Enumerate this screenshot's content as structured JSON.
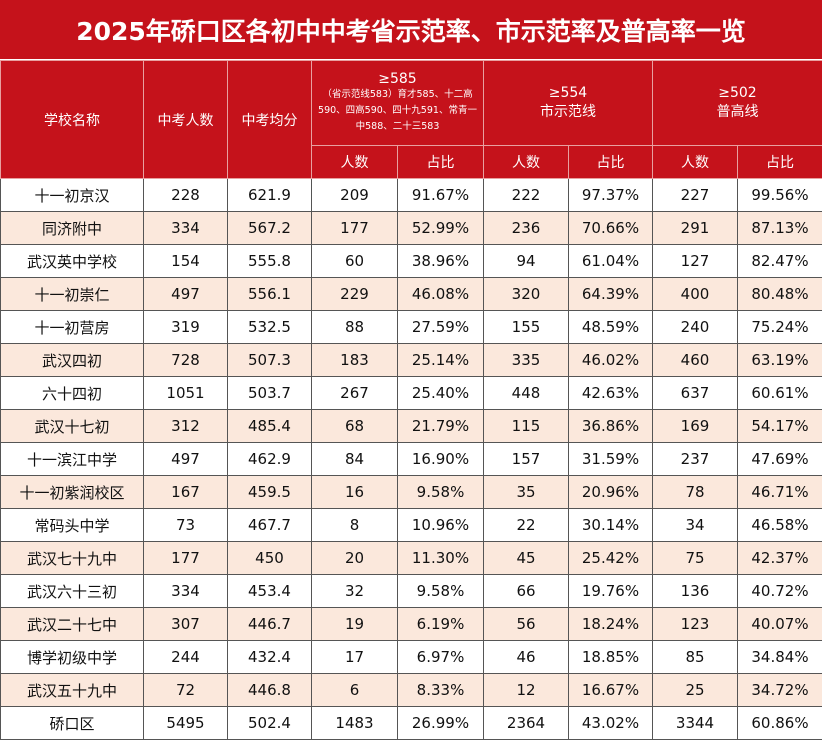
{
  "title": "2025年硚口区各初中中考省示范率、市示范率及普高率一览",
  "header": {
    "columns": [
      "学校名称",
      "中考人数",
      "中考均分"
    ],
    "groups": [
      {
        "threshold": "≥585",
        "note": "（省示范线583）育才585、十二高590、四高590、四十九591、常青一中588、二十三583",
        "sub": [
          "人数",
          "占比"
        ]
      },
      {
        "threshold": "≥554",
        "label": "市示范线",
        "sub": [
          "人数",
          "占比"
        ]
      },
      {
        "threshold": "≥502",
        "label": "普高线",
        "sub": [
          "人数",
          "占比"
        ]
      }
    ]
  },
  "table": {
    "rows": [
      [
        "十一初京汉",
        "228",
        "621.9",
        "209",
        "91.67%",
        "222",
        "97.37%",
        "227",
        "99.56%"
      ],
      [
        "同济附中",
        "334",
        "567.2",
        "177",
        "52.99%",
        "236",
        "70.66%",
        "291",
        "87.13%"
      ],
      [
        "武汉英中学校",
        "154",
        "555.8",
        "60",
        "38.96%",
        "94",
        "61.04%",
        "127",
        "82.47%"
      ],
      [
        "十一初崇仁",
        "497",
        "556.1",
        "229",
        "46.08%",
        "320",
        "64.39%",
        "400",
        "80.48%"
      ],
      [
        "十一初营房",
        "319",
        "532.5",
        "88",
        "27.59%",
        "155",
        "48.59%",
        "240",
        "75.24%"
      ],
      [
        "武汉四初",
        "728",
        "507.3",
        "183",
        "25.14%",
        "335",
        "46.02%",
        "460",
        "63.19%"
      ],
      [
        "六十四初",
        "1051",
        "503.7",
        "267",
        "25.40%",
        "448",
        "42.63%",
        "637",
        "60.61%"
      ],
      [
        "武汉十七初",
        "312",
        "485.4",
        "68",
        "21.79%",
        "115",
        "36.86%",
        "169",
        "54.17%"
      ],
      [
        "十一滨江中学",
        "497",
        "462.9",
        "84",
        "16.90%",
        "157",
        "31.59%",
        "237",
        "47.69%"
      ],
      [
        "十一初紫润校区",
        "167",
        "459.5",
        "16",
        "9.58%",
        "35",
        "20.96%",
        "78",
        "46.71%"
      ],
      [
        "常码头中学",
        "73",
        "467.7",
        "8",
        "10.96%",
        "22",
        "30.14%",
        "34",
        "46.58%"
      ],
      [
        "武汉七十九中",
        "177",
        "450",
        "20",
        "11.30%",
        "45",
        "25.42%",
        "75",
        "42.37%"
      ],
      [
        "武汉六十三初",
        "334",
        "453.4",
        "32",
        "9.58%",
        "66",
        "19.76%",
        "136",
        "40.72%"
      ],
      [
        "武汉二十七中",
        "307",
        "446.7",
        "19",
        "6.19%",
        "56",
        "18.24%",
        "123",
        "40.07%"
      ],
      [
        "博学初级中学",
        "244",
        "432.4",
        "17",
        "6.97%",
        "46",
        "18.85%",
        "85",
        "34.84%"
      ],
      [
        "武汉五十九中",
        "72",
        "446.8",
        "6",
        "8.33%",
        "12",
        "16.67%",
        "25",
        "34.72%"
      ],
      [
        "硚口区",
        "5495",
        "502.4",
        "1483",
        "26.99%",
        "2364",
        "43.02%",
        "3344",
        "60.86%"
      ]
    ]
  }
}
